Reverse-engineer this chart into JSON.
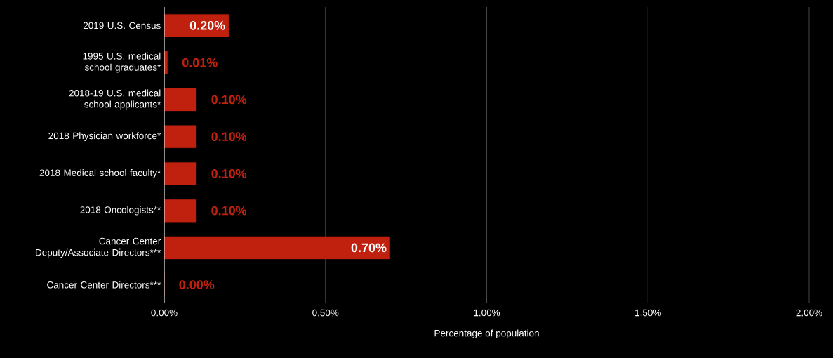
{
  "chart_data": {
    "type": "bar",
    "orientation": "horizontal",
    "xlabel": "Percentage of population",
    "categories": [
      "2019 U.S. Census",
      "1995 U.S. medical school graduates*",
      "2018-19 U.S. medical school applicants*",
      "2018 Physician workforce*",
      "2018 Medical school faculty*",
      "2018 Oncologists**",
      "Cancer Center Deputy/Associate Directors***",
      "Cancer Center Directors***"
    ],
    "values": [
      0.2,
      0.01,
      0.1,
      0.1,
      0.1,
      0.1,
      0.7,
      0
    ],
    "value_labels": [
      "0.20%",
      "0.01%",
      "0.10%",
      "0.10%",
      "0.10%",
      "0.10%",
      "0.70%",
      "0.00%"
    ],
    "color": "#c0210f",
    "xlim": [
      0,
      2
    ],
    "xticks": [
      {
        "value": 0,
        "label": "0.00%"
      },
      {
        "value": 0.5,
        "label": "0.50%"
      },
      {
        "value": 1,
        "label": "1.00%"
      },
      {
        "value": 1.5,
        "label": "1.50%"
      },
      {
        "value": 2,
        "label": "2.00%"
      }
    ],
    "grid": "x"
  }
}
